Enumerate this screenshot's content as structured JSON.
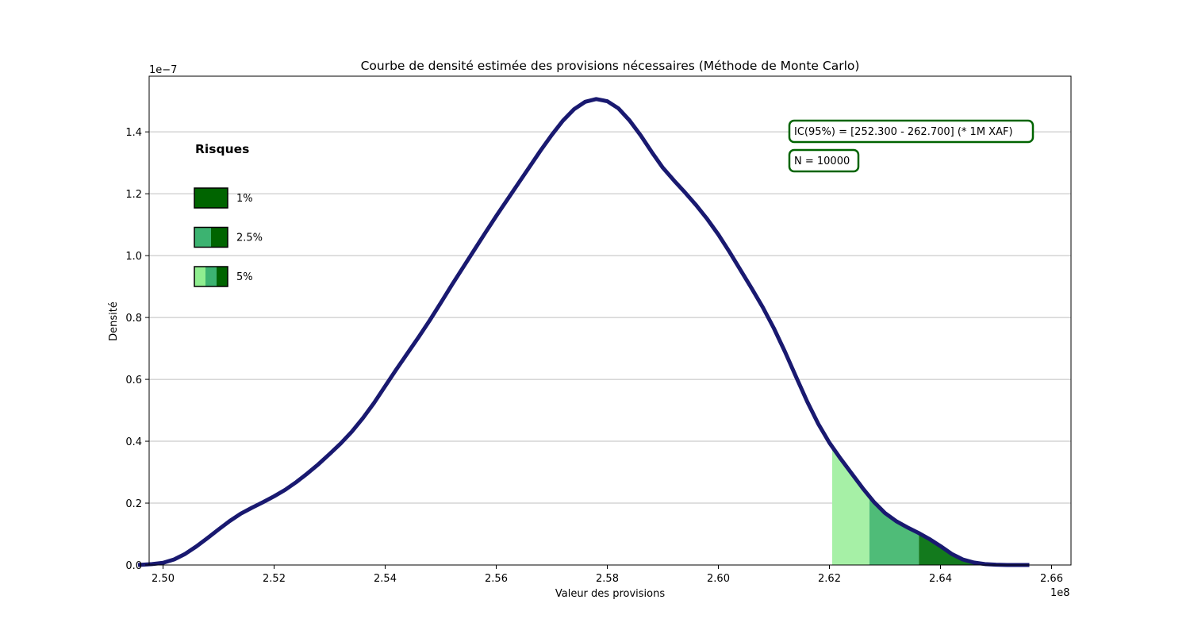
{
  "chart_data": {
    "type": "area",
    "title": "Courbe de densité estimée des provisions nécessaires (Méthode de Monte Carlo)",
    "xlabel": "Valeur des provisions",
    "ylabel": "Densité",
    "x_scale_label": "1e8",
    "y_scale_label": "1e−7",
    "xlim": [
      2.4975,
      2.6635
    ],
    "ylim": [
      0,
      1.58
    ],
    "xticks": [
      2.5,
      2.52,
      2.54,
      2.56,
      2.58,
      2.6,
      2.62,
      2.64,
      2.66
    ],
    "xtick_labels": [
      "2.50",
      "2.52",
      "2.54",
      "2.56",
      "2.58",
      "2.60",
      "2.62",
      "2.64",
      "2.66"
    ],
    "yticks": [
      0.0,
      0.2,
      0.4,
      0.6,
      0.8,
      1.0,
      1.2,
      1.4
    ],
    "ytick_labels": [
      "0.0",
      "0.2",
      "0.4",
      "0.6",
      "0.8",
      "1.0",
      "1.2",
      "1.4"
    ],
    "grid": "horizontal",
    "series": [
      {
        "x": [
          2.4955,
          2.498,
          2.5,
          2.502,
          2.504,
          2.506,
          2.508,
          2.51,
          2.512,
          2.514,
          2.516,
          2.518,
          2.52,
          2.522,
          2.524,
          2.526,
          2.528,
          2.53,
          2.532,
          2.534,
          2.536,
          2.538,
          2.54,
          2.542,
          2.544,
          2.546,
          2.548,
          2.55,
          2.552,
          2.554,
          2.556,
          2.558,
          2.56,
          2.562,
          2.564,
          2.566,
          2.568,
          2.57,
          2.572,
          2.574,
          2.576,
          2.578,
          2.58,
          2.582,
          2.584,
          2.586,
          2.588,
          2.59,
          2.592,
          2.594,
          2.596,
          2.598,
          2.6,
          2.602,
          2.604,
          2.606,
          2.608,
          2.61,
          2.612,
          2.614,
          2.616,
          2.618,
          2.62,
          2.622,
          2.624,
          2.626,
          2.628,
          2.63,
          2.632,
          2.634,
          2.636,
          2.638,
          2.64,
          2.642,
          2.644,
          2.646,
          2.648,
          2.65,
          2.652,
          2.654,
          2.656
        ],
        "y": [
          0.0,
          0.003,
          0.007,
          0.018,
          0.036,
          0.06,
          0.087,
          0.115,
          0.142,
          0.166,
          0.185,
          0.203,
          0.222,
          0.243,
          0.268,
          0.296,
          0.326,
          0.359,
          0.393,
          0.431,
          0.475,
          0.524,
          0.578,
          0.632,
          0.684,
          0.736,
          0.79,
          0.847,
          0.905,
          0.961,
          1.017,
          1.073,
          1.128,
          1.181,
          1.234,
          1.287,
          1.34,
          1.39,
          1.436,
          1.473,
          1.497,
          1.506,
          1.499,
          1.476,
          1.437,
          1.389,
          1.335,
          1.284,
          1.243,
          1.204,
          1.163,
          1.118,
          1.068,
          1.012,
          0.953,
          0.894,
          0.833,
          0.765,
          0.689,
          0.608,
          0.528,
          0.456,
          0.395,
          0.344,
          0.296,
          0.248,
          0.204,
          0.168,
          0.142,
          0.122,
          0.104,
          0.084,
          0.061,
          0.036,
          0.018,
          0.008,
          0.003,
          0.001,
          0.0,
          0.0,
          0.0
        ]
      }
    ],
    "shaded_regions": [
      {
        "label": "5%",
        "from": 2.6205,
        "to": 2.6272,
        "color": "#a6f0a6"
      },
      {
        "label": "2.5%",
        "from": 2.6272,
        "to": 2.6361,
        "color": "#4fbc78"
      },
      {
        "label": "1%",
        "from": 2.6361,
        "to": 2.6502,
        "color": "#137a1d"
      }
    ],
    "line_color": "#191970",
    "annotations": [
      {
        "text": "IC(95%) = [252.300 - 262.700] (* 1M XAF)"
      },
      {
        "text": "N = 10000"
      }
    ],
    "legend": {
      "title": "Risques",
      "placement": "top-left",
      "entries": [
        {
          "label": "1%",
          "swatch_colors": [
            "#006400"
          ]
        },
        {
          "label": "2.5%",
          "swatch_colors": [
            "#3cb371",
            "#006400"
          ]
        },
        {
          "label": "5%",
          "swatch_colors": [
            "#90ee90",
            "#3cb371",
            "#006400"
          ]
        }
      ]
    }
  }
}
